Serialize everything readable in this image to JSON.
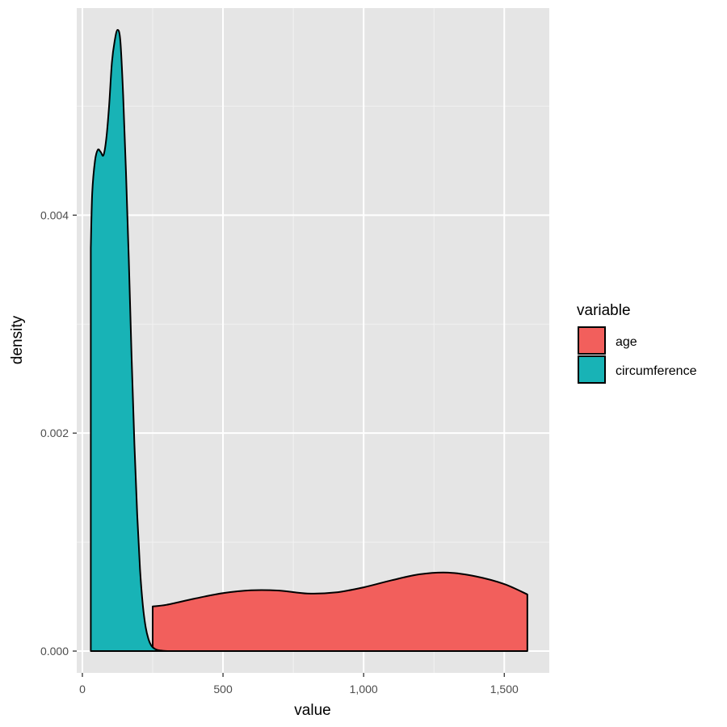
{
  "chart_data": {
    "type": "area",
    "chart_subtype": "density",
    "title": "",
    "xlabel": "value",
    "ylabel": "density",
    "xlim": [
      -20,
      1660
    ],
    "ylim": [
      -0.0002,
      0.0059
    ],
    "x_ticks": [
      0,
      500,
      1000,
      1500
    ],
    "x_tick_labels": [
      "0",
      "500",
      "1,000",
      "1,500"
    ],
    "y_ticks": [
      0,
      0.002,
      0.004
    ],
    "y_tick_labels": [
      "0.000",
      "0.002",
      "0.004"
    ],
    "grid": true,
    "legend": {
      "title": "variable",
      "position": "right"
    },
    "series": [
      {
        "name": "age",
        "color": "#F8766D",
        "fill": "#F25F5C",
        "x": [
          250,
          300,
          400,
          500,
          600,
          700,
          800,
          900,
          1000,
          1100,
          1200,
          1300,
          1400,
          1500,
          1582
        ],
        "y": [
          0.00041,
          0.000425,
          0.000482,
          0.000532,
          0.000558,
          0.000555,
          0.000528,
          0.000538,
          0.000585,
          0.00065,
          0.000705,
          0.00072,
          0.000685,
          0.000615,
          0.00052
        ]
      },
      {
        "name": "circumference",
        "color": "#00BFC4",
        "fill": "#18B3B6",
        "x": [
          30,
          35,
          45,
          55,
          65,
          75,
          85,
          95,
          105,
          115,
          125,
          135,
          145,
          155,
          165,
          175,
          185,
          195,
          205,
          215,
          225,
          235,
          245,
          255,
          265,
          275,
          285,
          295,
          305
        ],
        "y": [
          0.0037,
          0.0042,
          0.0045,
          0.0046,
          0.00458,
          0.00455,
          0.0047,
          0.005,
          0.0054,
          0.0056,
          0.0057,
          0.0056,
          0.0051,
          0.0044,
          0.0036,
          0.0027,
          0.0019,
          0.00125,
          0.00075,
          0.00042,
          0.00022,
          0.00011,
          5e-05,
          2.5e-05,
          1.2e-05,
          6e-06,
          3e-06,
          1e-06,
          0
        ]
      }
    ]
  }
}
